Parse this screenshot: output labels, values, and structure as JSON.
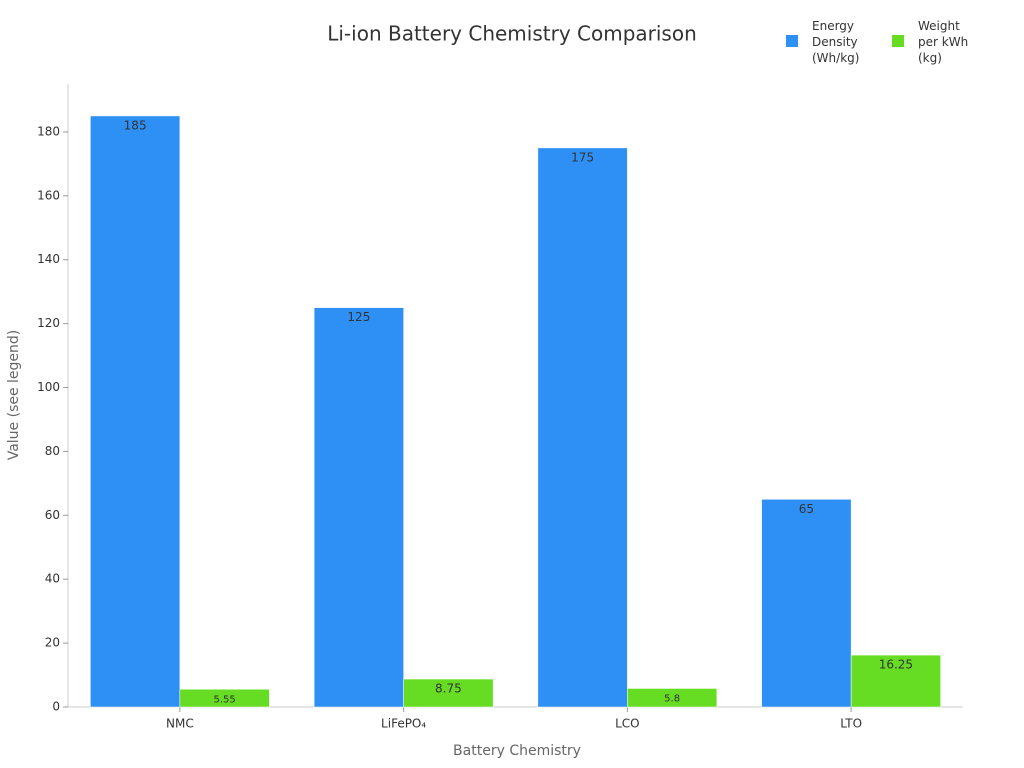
{
  "chart_data": {
    "type": "bar",
    "title": "Li-ion Battery Chemistry Comparison",
    "x_label": "Battery Chemistry",
    "y_label": "Value (see legend)",
    "categories": [
      "NMC",
      "LiFePO₄",
      "LCO",
      "LTO"
    ],
    "series": [
      {
        "name": "Energy Density (Wh/kg)",
        "color": "#2e8ff5",
        "values": [
          185,
          125,
          175,
          65
        ]
      },
      {
        "name": "Weight per kWh (kg)",
        "color": "#66dd22",
        "values": [
          5.55,
          8.75,
          5.8,
          16.25
        ]
      }
    ],
    "ylim": [
      0,
      195
    ],
    "yticks": [
      0,
      20,
      40,
      60,
      80,
      100,
      120,
      140,
      160,
      180
    ],
    "grid": false
  }
}
